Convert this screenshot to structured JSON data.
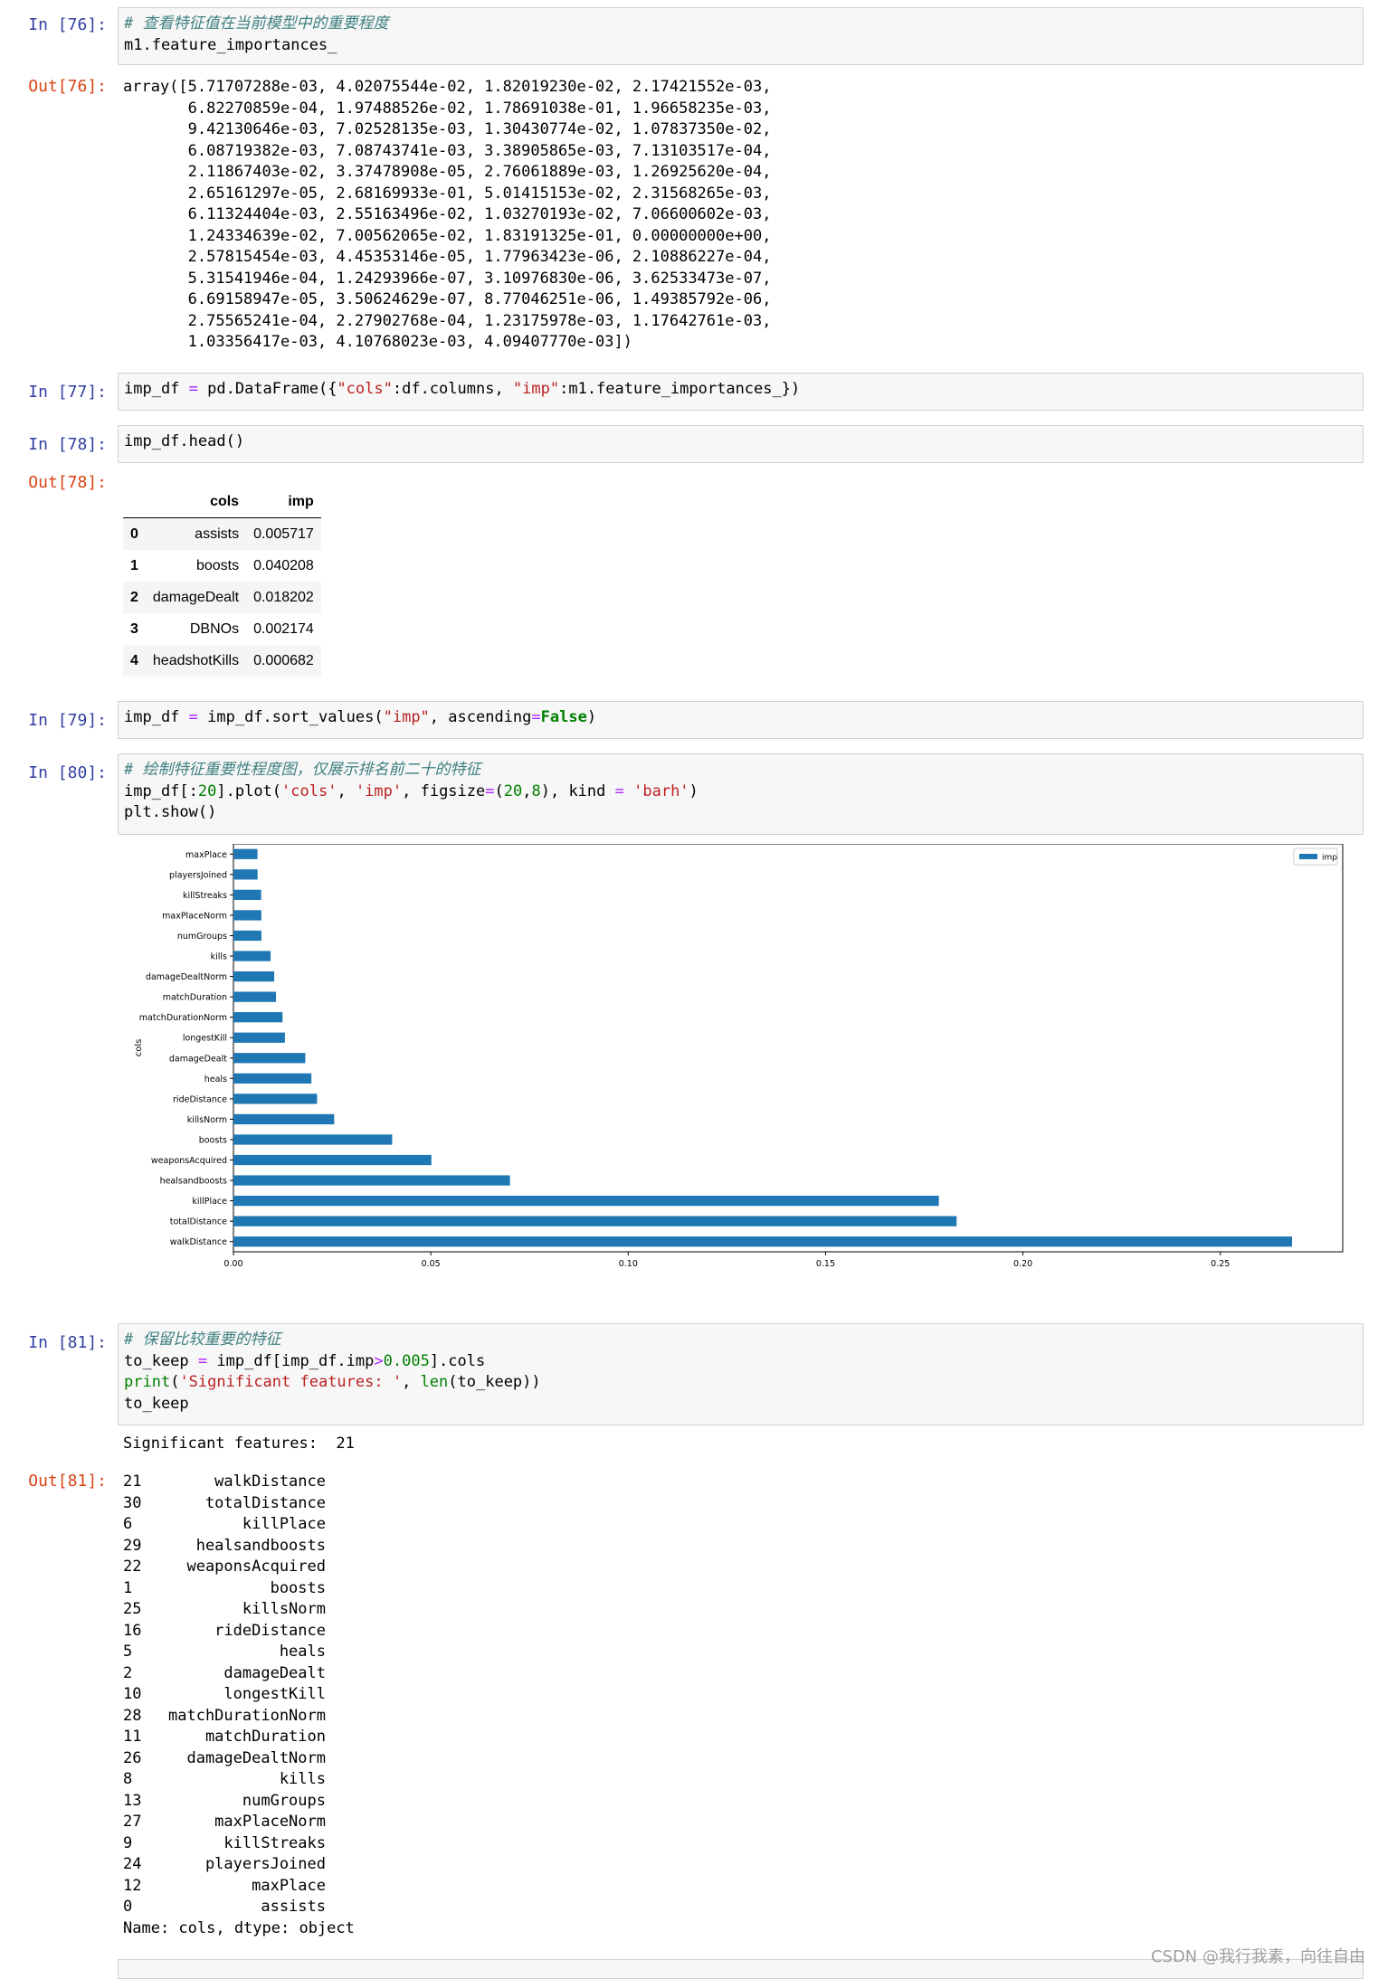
{
  "cells": {
    "c76": {
      "in_prompt": "In  [76]:",
      "comment": "# 查看特征值在当前模型中的重要程度",
      "code": "m1.feature_importances_",
      "out_prompt": "Out[76]:",
      "output_lines": [
        "array([5.71707288e-03, 4.02075544e-02, 1.82019230e-02, 2.17421552e-03,",
        "       6.82270859e-04, 1.97488526e-02, 1.78691038e-01, 1.96658235e-03,",
        "       9.42130646e-03, 7.02528135e-03, 1.30430774e-02, 1.07837350e-02,",
        "       6.08719382e-03, 7.08743741e-03, 3.38905865e-03, 7.13103517e-04,",
        "       2.11867403e-02, 3.37478908e-05, 2.76061889e-03, 1.26925620e-04,",
        "       2.65161297e-05, 2.68169933e-01, 5.01415153e-02, 2.31568265e-03,",
        "       6.11324404e-03, 2.55163496e-02, 1.03270193e-02, 7.06600602e-03,",
        "       1.24334639e-02, 7.00562065e-02, 1.83191325e-01, 0.00000000e+00,",
        "       2.57815454e-03, 4.45353146e-05, 1.77963423e-06, 2.10886227e-04,",
        "       5.31541946e-04, 1.24293966e-07, 3.10976830e-06, 3.62533473e-07,",
        "       6.69158947e-05, 3.50624629e-07, 8.77046251e-06, 1.49385792e-06,",
        "       2.75565241e-04, 2.27902768e-04, 1.23175978e-03, 1.17642761e-03,",
        "       1.03356417e-03, 4.10768023e-03, 4.09407770e-03])"
      ]
    },
    "c77": {
      "in_prompt": "In  [77]:",
      "code_parts": [
        "imp_df ",
        "=",
        " pd.DataFrame({",
        "\"cols\"",
        ":df.columns, ",
        "\"imp\"",
        ":m1.feature_importances_})"
      ]
    },
    "c78": {
      "in_prompt": "In  [78]:",
      "code": "imp_df.head()",
      "out_prompt": "Out[78]:",
      "table": {
        "columns": [
          "cols",
          "imp"
        ],
        "rows": [
          {
            "idx": "0",
            "cols": "assists",
            "imp": "0.005717"
          },
          {
            "idx": "1",
            "cols": "boosts",
            "imp": "0.040208"
          },
          {
            "idx": "2",
            "cols": "damageDealt",
            "imp": "0.018202"
          },
          {
            "idx": "3",
            "cols": "DBNOs",
            "imp": "0.002174"
          },
          {
            "idx": "4",
            "cols": "headshotKills",
            "imp": "0.000682"
          }
        ]
      }
    },
    "c79": {
      "in_prompt": "In  [79]:",
      "code_parts": [
        "imp_df ",
        "=",
        " imp_df.sort_values(",
        "\"imp\"",
        ", ascending",
        "=",
        "False",
        ")"
      ]
    },
    "c80": {
      "in_prompt": "In  [80]:",
      "comment": "# 绘制特征重要性程度图，仅展示排名前二十的特征",
      "code_parts": [
        "imp_df[:",
        "20",
        "].plot(",
        "'cols'",
        ", ",
        "'imp'",
        ", figsize",
        "=",
        "(",
        "20",
        ",",
        "8",
        "), kind ",
        "=",
        " ",
        "'barh'",
        ")"
      ],
      "code2": "plt.show()"
    },
    "c81": {
      "in_prompt": "In  [81]:",
      "comment": "# 保留比较重要的特征",
      "code_parts": [
        "to_keep ",
        "=",
        " imp_df[imp_df.imp",
        ">",
        "0.005",
        "].cols"
      ],
      "code_print": [
        "print",
        "(",
        "'Significant features: '",
        ", ",
        "len",
        "(to_keep))"
      ],
      "code3": "to_keep",
      "stdout": "Significant features:  21",
      "out_prompt": "Out[81]:",
      "series": [
        {
          "idx": "21",
          "name": "walkDistance"
        },
        {
          "idx": "30",
          "name": "totalDistance"
        },
        {
          "idx": "6",
          "name": "killPlace"
        },
        {
          "idx": "29",
          "name": "healsandboosts"
        },
        {
          "idx": "22",
          "name": "weaponsAcquired"
        },
        {
          "idx": "1",
          "name": "boosts"
        },
        {
          "idx": "25",
          "name": "killsNorm"
        },
        {
          "idx": "16",
          "name": "rideDistance"
        },
        {
          "idx": "5",
          "name": "heals"
        },
        {
          "idx": "2",
          "name": "damageDealt"
        },
        {
          "idx": "10",
          "name": "longestKill"
        },
        {
          "idx": "28",
          "name": "matchDurationNorm"
        },
        {
          "idx": "11",
          "name": "matchDuration"
        },
        {
          "idx": "26",
          "name": "damageDealtNorm"
        },
        {
          "idx": "8",
          "name": "kills"
        },
        {
          "idx": "13",
          "name": "numGroups"
        },
        {
          "idx": "27",
          "name": "maxPlaceNorm"
        },
        {
          "idx": "9",
          "name": "killStreaks"
        },
        {
          "idx": "24",
          "name": "playersJoined"
        },
        {
          "idx": "12",
          "name": "maxPlace"
        },
        {
          "idx": "0",
          "name": "assists"
        }
      ],
      "series_footer": "Name: cols, dtype: object"
    }
  },
  "chart_data": {
    "type": "bar",
    "orientation": "horizontal",
    "categories": [
      "walkDistance",
      "totalDistance",
      "killPlace",
      "healsandboosts",
      "weaponsAcquired",
      "boosts",
      "killsNorm",
      "rideDistance",
      "heals",
      "damageDealt",
      "longestKill",
      "matchDurationNorm",
      "matchDuration",
      "damageDealtNorm",
      "kills",
      "numGroups",
      "maxPlaceNorm",
      "killStreaks",
      "playersJoined",
      "maxPlace"
    ],
    "series": [
      {
        "name": "imp",
        "values": [
          0.26817,
          0.183191,
          0.178691,
          0.070056,
          0.050142,
          0.040208,
          0.025516,
          0.021187,
          0.019749,
          0.018202,
          0.013043,
          0.012433,
          0.010784,
          0.010327,
          0.009421,
          0.007087,
          0.007066,
          0.007025,
          0.006113,
          0.006087
        ],
        "color": "#1f77b4"
      }
    ],
    "xlim": [
      0.0,
      0.281
    ],
    "xticks": [
      "0.00",
      "0.05",
      "0.10",
      "0.15",
      "0.20",
      "0.25"
    ],
    "xtick_values": [
      0.0,
      0.05,
      0.1,
      0.15,
      0.2,
      0.25
    ],
    "ylabel": "cols",
    "legend": "top-right"
  },
  "watermark": "CSDN @我行我素，向往自由"
}
